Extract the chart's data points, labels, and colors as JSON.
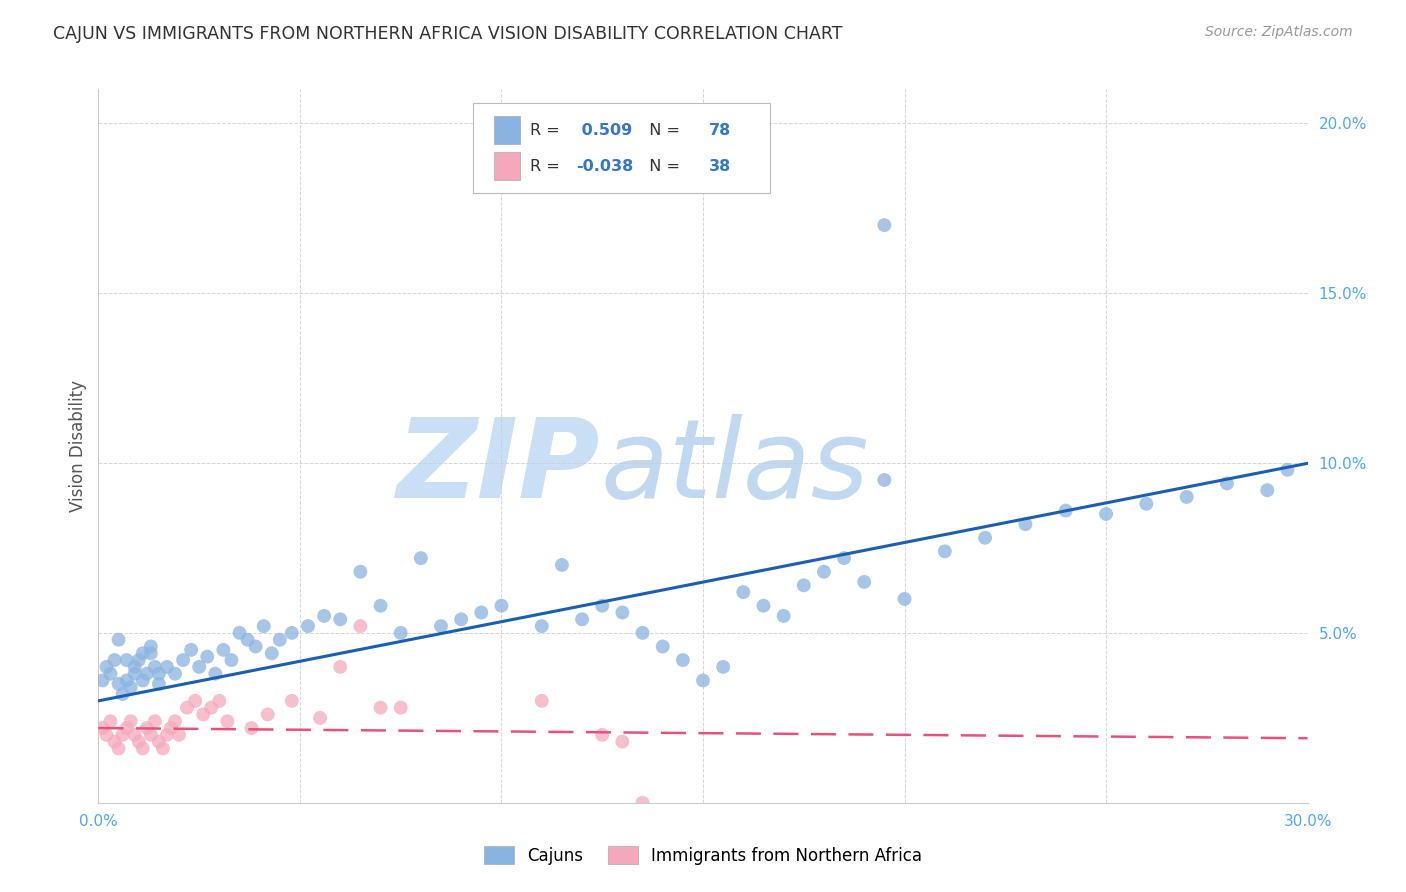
{
  "title": "CAJUN VS IMMIGRANTS FROM NORTHERN AFRICA VISION DISABILITY CORRELATION CHART",
  "source": "Source: ZipAtlas.com",
  "ylabel": "Vision Disability",
  "xlim": [
    0.0,
    0.3
  ],
  "ylim": [
    0.0,
    0.21
  ],
  "cajun_R": 0.509,
  "cajun_N": 78,
  "immig_R": -0.038,
  "immig_N": 38,
  "cajun_color": "#8ab4e0",
  "immig_color": "#f5a8bc",
  "line_cajun_color": "#1a5fb4",
  "line_immig_color": "#e8517a",
  "background_color": "#ffffff",
  "grid_color": "#cccccc",
  "axis_label_color": "#4da6ff",
  "title_color": "#333333",
  "watermark_zip_color": "#c8dff5",
  "watermark_atlas_color": "#c0d8f0",
  "cajun_x": [
    0.001,
    0.002,
    0.003,
    0.004,
    0.005,
    0.006,
    0.007,
    0.008,
    0.009,
    0.01,
    0.011,
    0.012,
    0.013,
    0.014,
    0.015,
    0.005,
    0.007,
    0.009,
    0.011,
    0.013,
    0.015,
    0.017,
    0.019,
    0.021,
    0.023,
    0.025,
    0.027,
    0.029,
    0.031,
    0.033,
    0.035,
    0.037,
    0.039,
    0.041,
    0.043,
    0.045,
    0.048,
    0.052,
    0.056,
    0.06,
    0.065,
    0.07,
    0.075,
    0.08,
    0.085,
    0.09,
    0.095,
    0.1,
    0.11,
    0.115,
    0.12,
    0.125,
    0.13,
    0.135,
    0.14,
    0.145,
    0.15,
    0.155,
    0.16,
    0.165,
    0.17,
    0.175,
    0.18,
    0.185,
    0.19,
    0.2,
    0.21,
    0.22,
    0.23,
    0.24,
    0.25,
    0.26,
    0.27,
    0.28,
    0.29,
    0.195,
    0.195,
    0.295
  ],
  "cajun_y": [
    0.036,
    0.04,
    0.038,
    0.042,
    0.035,
    0.032,
    0.036,
    0.034,
    0.038,
    0.042,
    0.036,
    0.038,
    0.044,
    0.04,
    0.035,
    0.048,
    0.042,
    0.04,
    0.044,
    0.046,
    0.038,
    0.04,
    0.038,
    0.042,
    0.045,
    0.04,
    0.043,
    0.038,
    0.045,
    0.042,
    0.05,
    0.048,
    0.046,
    0.052,
    0.044,
    0.048,
    0.05,
    0.052,
    0.055,
    0.054,
    0.068,
    0.058,
    0.05,
    0.072,
    0.052,
    0.054,
    0.056,
    0.058,
    0.052,
    0.07,
    0.054,
    0.058,
    0.056,
    0.05,
    0.046,
    0.042,
    0.036,
    0.04,
    0.062,
    0.058,
    0.055,
    0.064,
    0.068,
    0.072,
    0.065,
    0.06,
    0.074,
    0.078,
    0.082,
    0.086,
    0.085,
    0.088,
    0.09,
    0.094,
    0.092,
    0.17,
    0.095,
    0.098
  ],
  "immig_x": [
    0.001,
    0.002,
    0.003,
    0.004,
    0.005,
    0.006,
    0.007,
    0.008,
    0.009,
    0.01,
    0.011,
    0.012,
    0.013,
    0.014,
    0.015,
    0.016,
    0.017,
    0.018,
    0.019,
    0.02,
    0.022,
    0.024,
    0.026,
    0.028,
    0.03,
    0.032,
    0.038,
    0.042,
    0.048,
    0.055,
    0.06,
    0.065,
    0.07,
    0.075,
    0.11,
    0.125,
    0.13,
    0.135
  ],
  "immig_y": [
    0.022,
    0.02,
    0.024,
    0.018,
    0.016,
    0.02,
    0.022,
    0.024,
    0.02,
    0.018,
    0.016,
    0.022,
    0.02,
    0.024,
    0.018,
    0.016,
    0.02,
    0.022,
    0.024,
    0.02,
    0.028,
    0.03,
    0.026,
    0.028,
    0.03,
    0.024,
    0.022,
    0.026,
    0.03,
    0.025,
    0.04,
    0.052,
    0.028,
    0.028,
    0.03,
    0.02,
    0.018,
    0.0
  ],
  "cajun_slope": 0.233,
  "cajun_intercept": 0.03,
  "immig_slope": -0.01,
  "immig_intercept": 0.022,
  "legend_cajun": "Cajuns",
  "legend_immig": "Immigrants from Northern Africa"
}
